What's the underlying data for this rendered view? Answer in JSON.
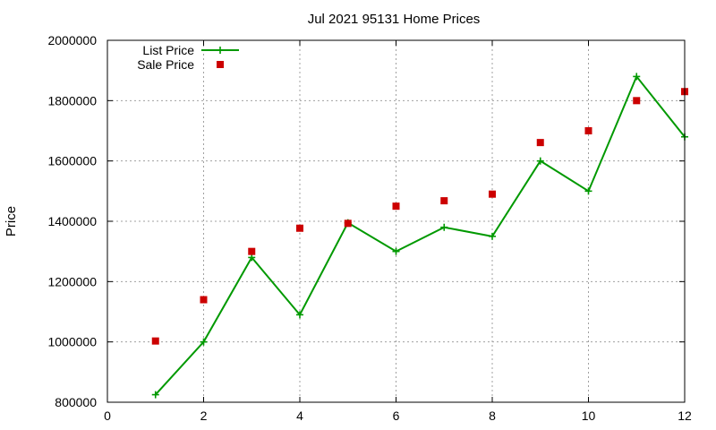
{
  "chart_data": {
    "type": "line",
    "title": "Jul 2021 95131 Home Prices",
    "xlabel": "",
    "ylabel": "Price",
    "xlim": [
      0,
      12
    ],
    "ylim": [
      800000,
      2000000
    ],
    "x_ticks": [
      "0",
      "2",
      "4",
      "6",
      "8",
      "10",
      "12"
    ],
    "y_ticks": [
      "800000",
      "1000000",
      "1200000",
      "1400000",
      "1600000",
      "1800000",
      "2000000"
    ],
    "grid": true,
    "legend_position": "top-left",
    "series": [
      {
        "name": "List Price",
        "style": "line-with-plus-markers",
        "color": "#009900",
        "x": [
          1,
          2,
          3,
          4,
          5,
          6,
          7,
          8,
          9,
          10,
          11,
          12
        ],
        "y": [
          825000,
          1000000,
          1280000,
          1090000,
          1395000,
          1300000,
          1380000,
          1350000,
          1600000,
          1500000,
          1880000,
          1680000
        ]
      },
      {
        "name": "Sale Price",
        "style": "square-points",
        "color": "#cc0000",
        "x": [
          1,
          2,
          3,
          4,
          5,
          6,
          7,
          8,
          9,
          10,
          11,
          12
        ],
        "y": [
          1003000,
          1140000,
          1300000,
          1377000,
          1393000,
          1450000,
          1468000,
          1490000,
          1661000,
          1700000,
          1800000,
          1830000
        ]
      }
    ]
  }
}
